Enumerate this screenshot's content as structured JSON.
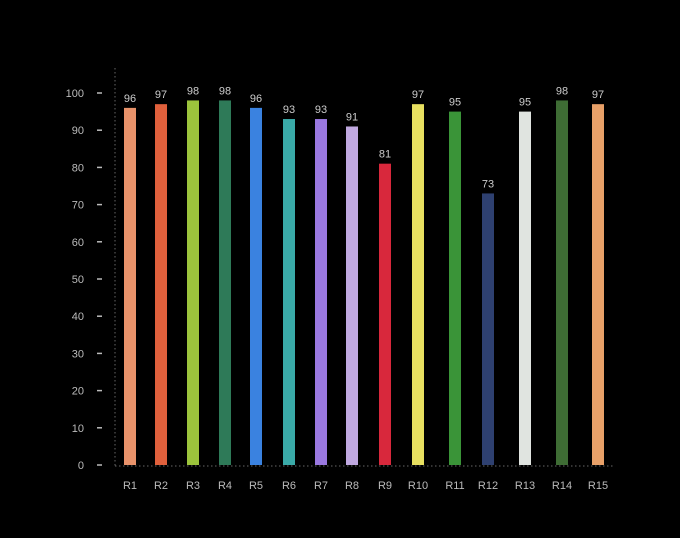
{
  "chart_data": {
    "type": "bar",
    "title": "",
    "xlabel": "",
    "ylabel": "",
    "ylim": [
      0,
      100
    ],
    "yticks": [
      0,
      10,
      20,
      30,
      40,
      50,
      60,
      70,
      80,
      90,
      100
    ],
    "grid": false,
    "categories": [
      "R1",
      "R2",
      "R3",
      "R4",
      "R5",
      "R6",
      "R7",
      "R8",
      "R9",
      "R10",
      "R11",
      "R12",
      "R13",
      "R14",
      "R15"
    ],
    "values": [
      96,
      97,
      98,
      98,
      96,
      93,
      93,
      91,
      81,
      97,
      95,
      73,
      95,
      98,
      97
    ],
    "colors": [
      "#e8926a",
      "#e0603c",
      "#9cc43c",
      "#2e7a58",
      "#3a82e0",
      "#3aaaa8",
      "#9a78e0",
      "#c0a8e0",
      "#d8283c",
      "#e8e060",
      "#3a9438",
      "#2e4070",
      "#e0e4e0",
      "#3e6c34",
      "#e8a068"
    ]
  }
}
